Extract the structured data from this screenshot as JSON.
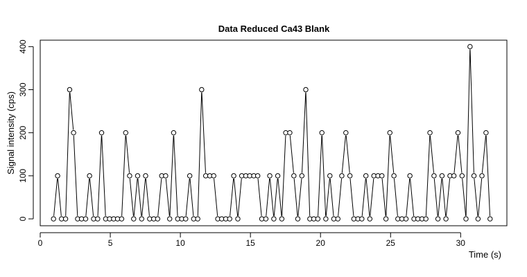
{
  "chart_data": {
    "type": "line",
    "title": "Data Reduced Ca43 Blank",
    "xlabel": "Time (s)",
    "ylabel": "Signal intensity (cps)",
    "xlim": [
      0,
      33.3
    ],
    "ylim": [
      -16,
      415
    ],
    "x_ticks": [
      0,
      5,
      10,
      15,
      20,
      25,
      30
    ],
    "y_ticks": [
      0,
      100,
      200,
      300,
      400
    ],
    "x_tick_labels": [
      "0",
      "5",
      "10",
      "15",
      "20",
      "25",
      "30"
    ],
    "y_tick_labels": [
      "0",
      "100",
      "200",
      "300",
      "400"
    ],
    "grid": false,
    "legend": "none",
    "marker": "open-circle",
    "line_color": "#000000",
    "series": [
      {
        "x": [
          0.95,
          1.24,
          1.52,
          1.81,
          2.1,
          2.38,
          2.67,
          2.95,
          3.24,
          3.52,
          3.81,
          4.1,
          4.38,
          4.67,
          4.95,
          5.24,
          5.52,
          5.81,
          6.1,
          6.38,
          6.67,
          6.95,
          7.24,
          7.52,
          7.81,
          8.1,
          8.38,
          8.67,
          8.95,
          9.24,
          9.52,
          9.81,
          10.1,
          10.38,
          10.67,
          10.95,
          11.24,
          11.52,
          11.81,
          12.1,
          12.38,
          12.67,
          12.95,
          13.24,
          13.52,
          13.81,
          14.1,
          14.38,
          14.67,
          14.95,
          15.24,
          15.52,
          15.81,
          16.1,
          16.38,
          16.67,
          16.95,
          17.24,
          17.52,
          17.81,
          18.1,
          18.38,
          18.67,
          18.95,
          19.24,
          19.52,
          19.81,
          20.1,
          20.38,
          20.67,
          20.95,
          21.24,
          21.52,
          21.81,
          22.1,
          22.38,
          22.67,
          22.95,
          23.24,
          23.52,
          23.81,
          24.1,
          24.38,
          24.67,
          24.95,
          25.24,
          25.52,
          25.81,
          26.1,
          26.38,
          26.67,
          26.95,
          27.24,
          27.52,
          27.81,
          28.1,
          28.38,
          28.67,
          28.95,
          29.24,
          29.52,
          29.81,
          30.1,
          30.38,
          30.67,
          30.95,
          31.24,
          31.52,
          31.81,
          32.1
        ],
        "y": [
          0,
          100,
          0,
          0,
          300,
          200,
          0,
          0,
          0,
          100,
          0,
          0,
          200,
          0,
          0,
          0,
          0,
          0,
          200,
          100,
          0,
          100,
          0,
          100,
          0,
          0,
          0,
          100,
          100,
          0,
          200,
          0,
          0,
          0,
          100,
          0,
          0,
          300,
          100,
          100,
          100,
          0,
          0,
          0,
          0,
          100,
          0,
          100,
          100,
          100,
          100,
          100,
          0,
          0,
          100,
          0,
          100,
          0,
          200,
          200,
          100,
          0,
          100,
          300,
          0,
          0,
          0,
          200,
          0,
          100,
          0,
          0,
          100,
          200,
          100,
          0,
          0,
          0,
          100,
          0,
          100,
          100,
          100,
          0,
          200,
          100,
          0,
          0,
          0,
          100,
          0,
          0,
          0,
          0,
          200,
          100,
          0,
          100,
          0,
          100,
          100,
          200,
          100,
          0,
          400,
          100,
          0,
          100,
          200,
          0
        ]
      }
    ]
  }
}
